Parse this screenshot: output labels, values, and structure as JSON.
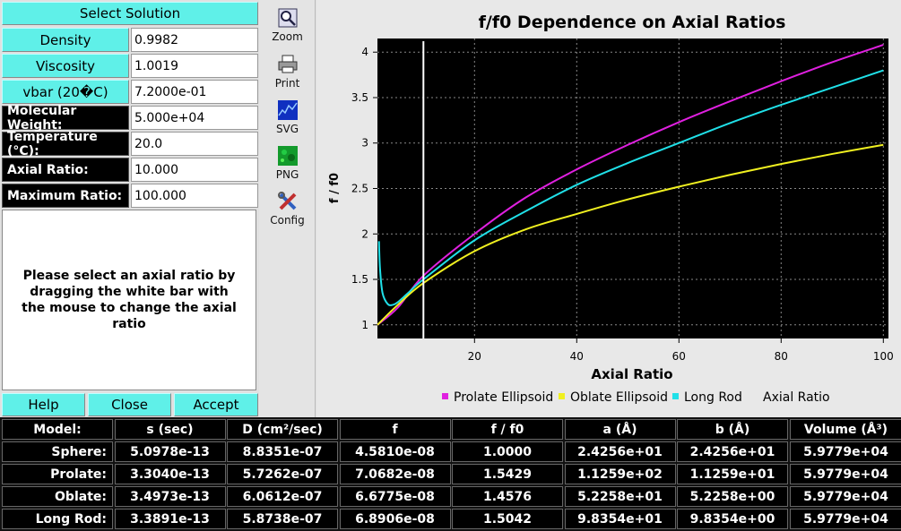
{
  "left": {
    "select_solution": "Select Solution",
    "density_label": "Density",
    "density_value": "0.9982",
    "viscosity_label": "Viscosity",
    "viscosity_value": "1.0019",
    "vbar_label": "vbar (20�C)",
    "vbar_value": "7.2000e-01",
    "mw_label": "Molecular Weight:",
    "mw_value": "5.000e+04",
    "temp_label": "Temperature (°C):",
    "temp_value": "20.0",
    "axial_label": "Axial Ratio:",
    "axial_value": "10.000",
    "maxratio_label": "Maximum Ratio:",
    "maxratio_value": "100.000",
    "message": "Please select an axial ratio by dragging the white bar with the mouse to change the axial ratio",
    "help": "Help",
    "close": "Close",
    "accept": "Accept"
  },
  "toolbar": {
    "zoom": "Zoom",
    "print": "Print",
    "svg": "SVG",
    "png": "PNG",
    "config": "Config"
  },
  "chart_data": {
    "type": "line",
    "title": "f/f0 Dependence on Axial Ratios",
    "xlabel": "Axial Ratio",
    "ylabel": "f / f0",
    "xlim": [
      1,
      101
    ],
    "ylim": [
      0.85,
      4.15
    ],
    "xticks": [
      "20",
      "40",
      "60",
      "80",
      "100"
    ],
    "yticks": [
      "1",
      "1.5",
      "2",
      "2.5",
      "3",
      "3.5",
      "4"
    ],
    "selected_axial_ratio": 10,
    "legend": [
      "Prolate Ellipsoid",
      "Oblate Ellipsoid",
      "Long Rod",
      "Axial Ratio"
    ],
    "series": [
      {
        "name": "Prolate Ellipsoid",
        "color": "#e020e0",
        "x": [
          1,
          5,
          10,
          20,
          30,
          40,
          50,
          60,
          70,
          80,
          90,
          100
        ],
        "y": [
          1.0,
          1.19,
          1.54,
          2.0,
          2.4,
          2.71,
          2.98,
          3.23,
          3.46,
          3.68,
          3.89,
          4.08
        ]
      },
      {
        "name": "Oblate Ellipsoid",
        "color": "#f0f020",
        "x": [
          1,
          5,
          10,
          20,
          30,
          40,
          50,
          60,
          70,
          80,
          90,
          100
        ],
        "y": [
          1.0,
          1.22,
          1.46,
          1.81,
          2.05,
          2.22,
          2.38,
          2.52,
          2.65,
          2.77,
          2.88,
          2.98
        ]
      },
      {
        "name": "Long Rod",
        "color": "#20e0e8",
        "x": [
          1.3,
          1.5,
          2,
          3,
          4,
          5,
          7,
          10,
          20,
          30,
          40,
          50,
          60,
          70,
          80,
          90,
          100
        ],
        "y": [
          1.92,
          1.62,
          1.35,
          1.23,
          1.22,
          1.25,
          1.35,
          1.5,
          1.93,
          2.25,
          2.54,
          2.78,
          3.0,
          3.22,
          3.42,
          3.61,
          3.8
        ]
      }
    ]
  },
  "table": {
    "headers": [
      "Model:",
      "s (sec)",
      "D (cm²/sec)",
      "f",
      "f / f0",
      "a (Å)",
      "b (Å)",
      "Volume (Å³)"
    ],
    "rows": [
      [
        "Sphere:",
        "5.0978e-13",
        "8.8351e-07",
        "4.5810e-08",
        "1.0000",
        "2.4256e+01",
        "2.4256e+01",
        "5.9779e+04"
      ],
      [
        "Prolate:",
        "3.3040e-13",
        "5.7262e-07",
        "7.0682e-08",
        "1.5429",
        "1.1259e+02",
        "1.1259e+01",
        "5.9779e+04"
      ],
      [
        "Oblate:",
        "3.4973e-13",
        "6.0612e-07",
        "6.6775e-08",
        "1.4576",
        "5.2258e+01",
        "5.2258e+00",
        "5.9779e+04"
      ],
      [
        "Long Rod:",
        "3.3891e-13",
        "5.8738e-07",
        "6.8906e-08",
        "1.5042",
        "9.8354e+01",
        "9.8354e+00",
        "5.9779e+04"
      ]
    ]
  }
}
